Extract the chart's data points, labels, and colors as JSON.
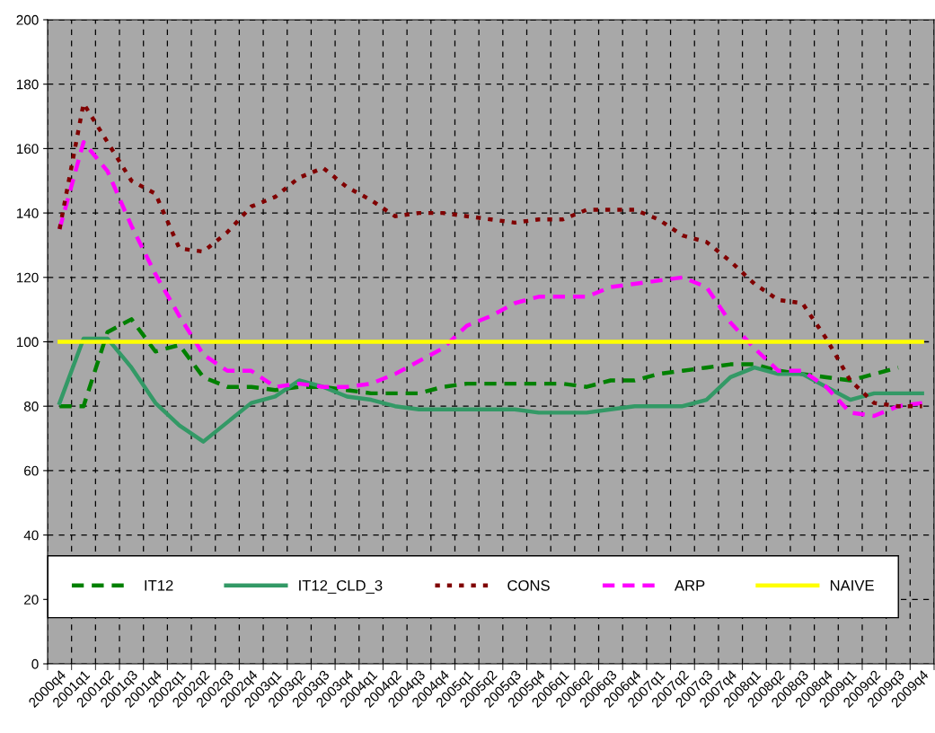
{
  "chart_data": {
    "type": "line",
    "categories": [
      "2000q4",
      "2001q1",
      "2001q2",
      "2001q3",
      "2001q4",
      "2002q1",
      "2002q2",
      "2002q3",
      "2002q4",
      "2003q1",
      "2003q2",
      "2003q3",
      "2003q4",
      "2004q1",
      "2004q2",
      "2004q3",
      "2004q4",
      "2005q1",
      "2005q2",
      "2005q3",
      "2005q4",
      "2006q1",
      "2006q2",
      "2006q3",
      "2006q4",
      "2007q1",
      "2007q2",
      "2007q3",
      "2007q4",
      "2008q1",
      "2008q2",
      "2008q3",
      "2008q4",
      "2009q1",
      "2009q2",
      "2009q3",
      "2009q4"
    ],
    "series": [
      {
        "name": "IT12",
        "color": "#008000",
        "line_style": "dashed",
        "values": [
          80,
          80,
          103,
          107,
          97,
          99,
          89,
          86,
          86,
          85,
          86,
          86,
          85,
          84,
          84,
          84,
          86,
          87,
          87,
          87,
          87,
          87,
          86,
          88,
          88,
          90,
          91,
          92,
          93,
          93,
          91,
          90,
          89,
          88,
          90,
          92,
          null
        ]
      },
      {
        "name": "IT12_CLD_3",
        "color": "#339966",
        "line_style": "solid",
        "values": [
          81,
          101,
          101,
          92,
          81,
          74,
          69,
          75,
          81,
          83,
          88,
          86,
          83,
          82,
          80,
          79,
          79,
          79,
          79,
          79,
          78,
          78,
          78,
          79,
          80,
          80,
          80,
          82,
          89,
          92,
          90,
          90,
          86,
          82,
          84,
          84,
          84
        ]
      },
      {
        "name": "CONS",
        "color": "#800000",
        "line_style": "dotted",
        "values": [
          135,
          174,
          162,
          150,
          146,
          129,
          128,
          134,
          142,
          145,
          151,
          154,
          148,
          144,
          139,
          140,
          140,
          139,
          138,
          137,
          138,
          138,
          141,
          141,
          141,
          138,
          133,
          131,
          125,
          118,
          113,
          112,
          101,
          88,
          81,
          80,
          80
        ]
      },
      {
        "name": "ARP",
        "color": "#ff00ff",
        "line_style": "dashed",
        "values": [
          135,
          162,
          153,
          136,
          121,
          108,
          96,
          91,
          91,
          86,
          87,
          86,
          86,
          87,
          90,
          94,
          98,
          105,
          108,
          112,
          114,
          114,
          114,
          117,
          118,
          119,
          120,
          117,
          106,
          98,
          91,
          91,
          86,
          78,
          77,
          80,
          81
        ]
      },
      {
        "name": "NAIVE",
        "color": "#ffff00",
        "line_style": "solid",
        "values": [
          100,
          100,
          100,
          100,
          100,
          100,
          100,
          100,
          100,
          100,
          100,
          100,
          100,
          100,
          100,
          100,
          100,
          100,
          100,
          100,
          100,
          100,
          100,
          100,
          100,
          100,
          100,
          100,
          100,
          100,
          100,
          100,
          100,
          100,
          100,
          100,
          100
        ]
      }
    ],
    "ylim": [
      0,
      200
    ],
    "yticks": [
      0,
      20,
      40,
      60,
      80,
      100,
      120,
      140,
      160,
      180,
      200
    ],
    "grid": true,
    "legend": "bottom",
    "marker": "none"
  }
}
